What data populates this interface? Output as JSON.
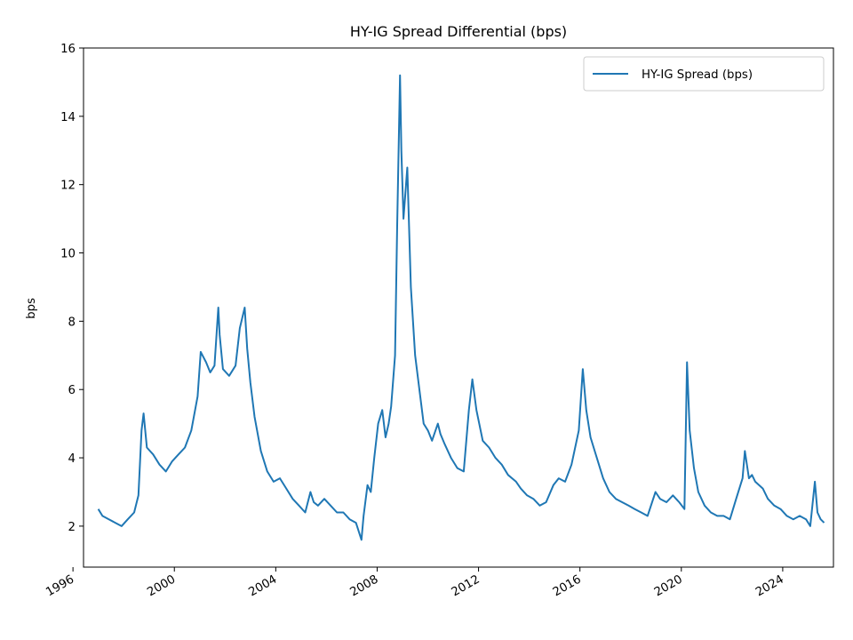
{
  "chart_data": {
    "type": "line",
    "title": "HY-IG Spread Differential (bps)",
    "xlabel": "",
    "ylabel": "bps",
    "xlim": [
      "1996-06-01",
      "2026-01-01"
    ],
    "ylim": [
      0.8,
      16
    ],
    "x_ticks": [
      "1996",
      "2000",
      "2004",
      "2008",
      "2012",
      "2016",
      "2020",
      "2024"
    ],
    "y_ticks": [
      2,
      4,
      6,
      8,
      10,
      12,
      14,
      16
    ],
    "grid": false,
    "legend_position": "top-right",
    "series": [
      {
        "name": "HY-IG Spread (bps)",
        "color": "#1f77b4",
        "x": [
          "1996-12-31",
          "1997-03-01",
          "1997-06-01",
          "1997-09-01",
          "1997-12-01",
          "1998-03-01",
          "1998-06-01",
          "1998-08-01",
          "1998-09-15",
          "1998-10-15",
          "1998-12-01",
          "1999-03-01",
          "1999-06-01",
          "1999-09-01",
          "1999-12-01",
          "2000-03-01",
          "2000-06-01",
          "2000-09-01",
          "2000-12-01",
          "2001-01-15",
          "2001-04-01",
          "2001-06-01",
          "2001-08-01",
          "2001-09-25",
          "2001-10-15",
          "2001-12-01",
          "2002-03-01",
          "2002-06-01",
          "2002-08-01",
          "2002-10-10",
          "2002-11-15",
          "2003-01-01",
          "2003-03-01",
          "2003-06-01",
          "2003-09-01",
          "2003-12-01",
          "2004-03-01",
          "2004-06-01",
          "2004-09-01",
          "2004-12-01",
          "2005-03-01",
          "2005-05-15",
          "2005-07-01",
          "2005-09-01",
          "2005-12-01",
          "2006-03-01",
          "2006-06-01",
          "2006-09-01",
          "2006-12-01",
          "2007-03-01",
          "2007-05-20",
          "2007-06-20",
          "2007-08-15",
          "2007-10-01",
          "2007-11-20",
          "2008-01-15",
          "2008-03-15",
          "2008-05-01",
          "2008-06-15",
          "2008-07-20",
          "2008-09-15",
          "2008-10-15",
          "2008-11-25",
          "2008-12-15",
          "2009-01-15",
          "2009-03-10",
          "2009-05-01",
          "2009-07-01",
          "2009-09-01",
          "2009-11-01",
          "2010-01-01",
          "2010-03-01",
          "2010-05-25",
          "2010-07-01",
          "2010-09-01",
          "2010-12-01",
          "2011-03-01",
          "2011-06-01",
          "2011-08-15",
          "2011-10-04",
          "2011-12-01",
          "2012-03-01",
          "2012-06-01",
          "2012-09-01",
          "2012-12-01",
          "2013-03-01",
          "2013-06-25",
          "2013-09-01",
          "2013-12-01",
          "2014-03-01",
          "2014-06-01",
          "2014-09-01",
          "2014-12-15",
          "2015-03-01",
          "2015-06-01",
          "2015-09-01",
          "2015-12-15",
          "2016-02-11",
          "2016-04-01",
          "2016-06-01",
          "2016-09-01",
          "2016-12-01",
          "2017-03-01",
          "2017-06-01",
          "2017-09-01",
          "2017-12-01",
          "2018-03-01",
          "2018-06-01",
          "2018-09-01",
          "2018-12-24",
          "2019-03-01",
          "2019-06-01",
          "2019-09-01",
          "2019-12-01",
          "2020-02-15",
          "2020-03-23",
          "2020-05-01",
          "2020-07-01",
          "2020-09-01",
          "2020-12-01",
          "2021-03-01",
          "2021-06-01",
          "2021-09-01",
          "2021-12-01",
          "2022-03-01",
          "2022-06-01",
          "2022-07-05",
          "2022-09-01",
          "2022-10-15",
          "2022-12-01",
          "2023-03-20",
          "2023-06-01",
          "2023-09-01",
          "2023-12-01",
          "2024-03-01",
          "2024-06-01",
          "2024-09-01",
          "2024-12-01",
          "2025-02-01",
          "2025-04-08",
          "2025-05-15",
          "2025-07-01",
          "2025-08-20"
        ],
        "y": [
          2.5,
          2.3,
          2.2,
          2.1,
          2.0,
          2.2,
          2.4,
          2.9,
          4.8,
          5.3,
          4.3,
          4.1,
          3.8,
          3.6,
          3.9,
          4.1,
          4.3,
          4.8,
          5.8,
          7.1,
          6.8,
          6.5,
          6.7,
          8.4,
          7.6,
          6.6,
          6.4,
          6.7,
          7.8,
          8.4,
          7.2,
          6.2,
          5.2,
          4.2,
          3.6,
          3.3,
          3.4,
          3.1,
          2.8,
          2.6,
          2.4,
          3.0,
          2.7,
          2.6,
          2.8,
          2.6,
          2.4,
          2.4,
          2.2,
          2.1,
          1.6,
          2.3,
          3.2,
          3.0,
          4.0,
          5.0,
          5.4,
          4.6,
          5.0,
          5.5,
          7.0,
          10.8,
          15.2,
          13.0,
          11.0,
          12.5,
          9.0,
          7.0,
          6.0,
          5.0,
          4.8,
          4.5,
          5.0,
          4.7,
          4.4,
          4.0,
          3.7,
          3.6,
          5.4,
          6.3,
          5.4,
          4.5,
          4.3,
          4.0,
          3.8,
          3.5,
          3.3,
          3.1,
          2.9,
          2.8,
          2.6,
          2.7,
          3.2,
          3.4,
          3.3,
          3.8,
          4.8,
          6.6,
          5.4,
          4.6,
          4.0,
          3.4,
          3.0,
          2.8,
          2.7,
          2.6,
          2.5,
          2.4,
          2.3,
          3.0,
          2.8,
          2.7,
          2.9,
          2.7,
          2.5,
          6.8,
          4.8,
          3.7,
          3.0,
          2.6,
          2.4,
          2.3,
          2.3,
          2.2,
          2.8,
          3.4,
          4.2,
          3.4,
          3.5,
          3.3,
          3.1,
          2.8,
          2.6,
          2.5,
          2.3,
          2.2,
          2.3,
          2.2,
          2.0,
          3.3,
          2.4,
          2.2,
          2.1
        ]
      }
    ]
  }
}
